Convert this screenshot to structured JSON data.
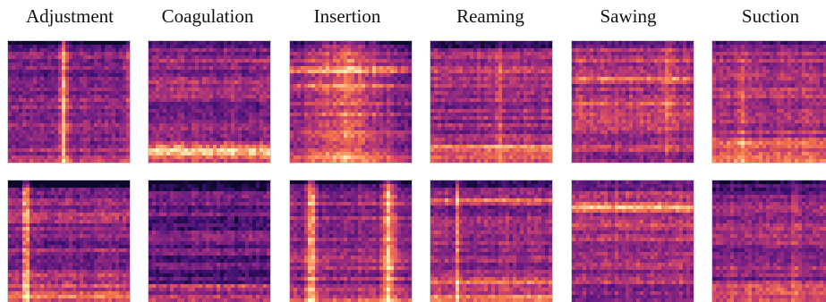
{
  "figure": {
    "columns": [
      {
        "label": "Adjustment",
        "rows": [
          "spectrogram-adjustment-1",
          "spectrogram-adjustment-2"
        ]
      },
      {
        "label": "Coagulation",
        "rows": [
          "spectrogram-coagulation-1",
          "spectrogram-coagulation-2"
        ]
      },
      {
        "label": "Insertion",
        "rows": [
          "spectrogram-insertion-1",
          "spectrogram-insertion-2"
        ]
      },
      {
        "label": "Reaming",
        "rows": [
          "spectrogram-reaming-1",
          "spectrogram-reaming-2"
        ]
      },
      {
        "label": "Sawing",
        "rows": [
          "spectrogram-sawing-1",
          "spectrogram-sawing-2"
        ]
      },
      {
        "label": "Suction",
        "rows": [
          "spectrogram-suction-1",
          "spectrogram-suction-2"
        ]
      }
    ],
    "colormap": [
      "#0d0829",
      "#3a0f6e",
      "#6a1c81",
      "#9b2d7f",
      "#cf4669",
      "#f1714d",
      "#fca36f",
      "#fcd9a3",
      "#fcfdbf"
    ]
  }
}
